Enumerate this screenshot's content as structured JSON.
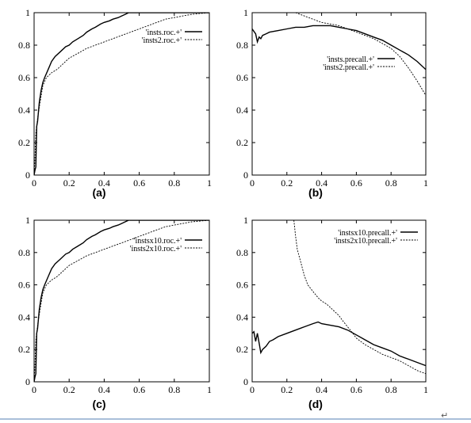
{
  "chart_data": [
    {
      "id": "a",
      "type": "line",
      "caption": "(a)",
      "xlim": [
        0,
        1
      ],
      "ylim": [
        0,
        1
      ],
      "xticks": [
        "0",
        "0.2",
        "0.4",
        "0.6",
        "0.8",
        "1"
      ],
      "yticks": [
        "0",
        "0.2",
        "0.4",
        "0.6",
        "0.8",
        "1"
      ],
      "legend": "top-right",
      "grid": false,
      "series": [
        {
          "name": "'insts.roc.+'",
          "style": "solid",
          "x": [
            0,
            0.005,
            0.01,
            0.015,
            0.02,
            0.03,
            0.04,
            0.05,
            0.06,
            0.08,
            0.1,
            0.12,
            0.15,
            0.18,
            0.2,
            0.22,
            0.25,
            0.28,
            0.3,
            0.33,
            0.35,
            0.38,
            0.4,
            0.43,
            0.45,
            0.48,
            0.5,
            0.52,
            0.54,
            0.56,
            0.6,
            0.7,
            0.8,
            0.9,
            1.0
          ],
          "y": [
            0,
            0.03,
            0.05,
            0.3,
            0.33,
            0.45,
            0.52,
            0.57,
            0.6,
            0.65,
            0.7,
            0.73,
            0.76,
            0.79,
            0.8,
            0.82,
            0.84,
            0.86,
            0.88,
            0.9,
            0.91,
            0.93,
            0.94,
            0.95,
            0.96,
            0.97,
            0.98,
            0.99,
            1.0,
            1.0,
            1.0,
            1.0,
            1.0,
            1.0,
            1.0
          ]
        },
        {
          "name": "'insts2.roc.+'",
          "style": "dashed",
          "x": [
            0,
            0.005,
            0.01,
            0.015,
            0.02,
            0.03,
            0.05,
            0.07,
            0.1,
            0.13,
            0.15,
            0.18,
            0.2,
            0.25,
            0.3,
            0.35,
            0.4,
            0.45,
            0.5,
            0.55,
            0.6,
            0.65,
            0.7,
            0.75,
            0.8,
            0.85,
            0.9,
            0.95,
            1.0
          ],
          "y": [
            0,
            0.1,
            0.26,
            0.3,
            0.35,
            0.42,
            0.55,
            0.6,
            0.63,
            0.65,
            0.67,
            0.7,
            0.72,
            0.75,
            0.78,
            0.8,
            0.82,
            0.84,
            0.86,
            0.88,
            0.9,
            0.92,
            0.94,
            0.96,
            0.97,
            0.98,
            0.99,
            0.995,
            1.0
          ]
        }
      ]
    },
    {
      "id": "b",
      "type": "line",
      "caption": "(b)",
      "xlim": [
        0,
        1
      ],
      "ylim": [
        0,
        1
      ],
      "xticks": [
        "0",
        "0.2",
        "0.4",
        "0.6",
        "0.8",
        "1"
      ],
      "yticks": [
        "0",
        "0.2",
        "0.4",
        "0.6",
        "0.8",
        "1"
      ],
      "legend": "center-right",
      "grid": false,
      "series": [
        {
          "name": "'insts.precall.+'",
          "style": "solid",
          "x": [
            0.0,
            0.02,
            0.03,
            0.04,
            0.05,
            0.06,
            0.08,
            0.1,
            0.15,
            0.2,
            0.25,
            0.3,
            0.35,
            0.4,
            0.45,
            0.5,
            0.55,
            0.6,
            0.65,
            0.7,
            0.75,
            0.8,
            0.85,
            0.9,
            0.95,
            1.0
          ],
          "y": [
            0.9,
            0.87,
            0.82,
            0.85,
            0.84,
            0.86,
            0.87,
            0.88,
            0.89,
            0.9,
            0.91,
            0.91,
            0.92,
            0.92,
            0.92,
            0.91,
            0.9,
            0.89,
            0.87,
            0.85,
            0.83,
            0.8,
            0.77,
            0.74,
            0.7,
            0.65
          ]
        },
        {
          "name": "'insts2.precall.+'",
          "style": "dashed",
          "x": [
            0.25,
            0.3,
            0.35,
            0.4,
            0.45,
            0.5,
            0.55,
            0.6,
            0.65,
            0.7,
            0.75,
            0.8,
            0.85,
            0.9,
            0.95,
            1.0
          ],
          "y": [
            1.0,
            0.98,
            0.96,
            0.94,
            0.93,
            0.92,
            0.9,
            0.88,
            0.86,
            0.84,
            0.81,
            0.78,
            0.73,
            0.66,
            0.58,
            0.49
          ]
        }
      ]
    },
    {
      "id": "c",
      "type": "line",
      "caption": "(c)",
      "xlim": [
        0,
        1
      ],
      "ylim": [
        0,
        1
      ],
      "xticks": [
        "0",
        "0.2",
        "0.4",
        "0.6",
        "0.8",
        "1"
      ],
      "yticks": [
        "0",
        "0.2",
        "0.4",
        "0.6",
        "0.8",
        "1"
      ],
      "legend": "top-right",
      "grid": false,
      "series": [
        {
          "name": "'instsx10.roc.+'",
          "style": "solid",
          "x": [
            0,
            0.005,
            0.01,
            0.015,
            0.02,
            0.03,
            0.04,
            0.05,
            0.06,
            0.08,
            0.1,
            0.12,
            0.15,
            0.18,
            0.2,
            0.22,
            0.25,
            0.28,
            0.3,
            0.33,
            0.35,
            0.38,
            0.4,
            0.43,
            0.45,
            0.48,
            0.5,
            0.52,
            0.54,
            0.56,
            0.6,
            0.7,
            0.8,
            0.9,
            1.0
          ],
          "y": [
            0,
            0.03,
            0.05,
            0.3,
            0.33,
            0.45,
            0.52,
            0.57,
            0.6,
            0.65,
            0.7,
            0.73,
            0.76,
            0.79,
            0.8,
            0.82,
            0.84,
            0.86,
            0.88,
            0.9,
            0.91,
            0.93,
            0.94,
            0.95,
            0.96,
            0.97,
            0.98,
            0.99,
            1.0,
            1.0,
            1.0,
            1.0,
            1.0,
            1.0,
            1.0
          ]
        },
        {
          "name": "'insts2x10.roc.+'",
          "style": "dashed",
          "x": [
            0,
            0.005,
            0.01,
            0.015,
            0.02,
            0.03,
            0.05,
            0.07,
            0.1,
            0.13,
            0.15,
            0.18,
            0.2,
            0.25,
            0.3,
            0.35,
            0.4,
            0.45,
            0.5,
            0.55,
            0.6,
            0.65,
            0.7,
            0.75,
            0.8,
            0.85,
            0.9,
            0.95,
            1.0
          ],
          "y": [
            0,
            0.1,
            0.26,
            0.3,
            0.35,
            0.42,
            0.55,
            0.6,
            0.63,
            0.65,
            0.67,
            0.7,
            0.72,
            0.75,
            0.78,
            0.8,
            0.82,
            0.84,
            0.86,
            0.88,
            0.9,
            0.92,
            0.94,
            0.96,
            0.97,
            0.98,
            0.99,
            0.995,
            1.0
          ]
        }
      ]
    },
    {
      "id": "d",
      "type": "line",
      "caption": "(d)",
      "xlim": [
        0,
        1
      ],
      "ylim": [
        0,
        1
      ],
      "xticks": [
        "0",
        "0.2",
        "0.4",
        "0.6",
        "0.8",
        "1"
      ],
      "yticks": [
        "0",
        "0.2",
        "0.4",
        "0.6",
        "0.8",
        "1"
      ],
      "legend": "top-right",
      "grid": false,
      "series": [
        {
          "name": "'instsx10.precall.+'",
          "style": "solid",
          "x": [
            0.0,
            0.01,
            0.02,
            0.03,
            0.04,
            0.05,
            0.06,
            0.08,
            0.1,
            0.12,
            0.15,
            0.2,
            0.25,
            0.3,
            0.35,
            0.38,
            0.4,
            0.45,
            0.5,
            0.55,
            0.6,
            0.65,
            0.7,
            0.75,
            0.8,
            0.85,
            0.9,
            0.95,
            1.0
          ],
          "y": [
            0.3,
            0.31,
            0.25,
            0.3,
            0.24,
            0.18,
            0.2,
            0.22,
            0.25,
            0.26,
            0.28,
            0.3,
            0.32,
            0.34,
            0.36,
            0.37,
            0.36,
            0.35,
            0.34,
            0.32,
            0.29,
            0.26,
            0.23,
            0.21,
            0.19,
            0.16,
            0.14,
            0.12,
            0.1
          ]
        },
        {
          "name": "'insts2x10.precall.+'",
          "style": "dashed",
          "x": [
            0.24,
            0.25,
            0.26,
            0.28,
            0.3,
            0.32,
            0.35,
            0.38,
            0.4,
            0.43,
            0.45,
            0.48,
            0.5,
            0.52,
            0.55,
            0.58,
            0.6,
            0.65,
            0.7,
            0.75,
            0.8,
            0.85,
            0.9,
            0.95,
            1.0
          ],
          "y": [
            1.0,
            0.9,
            0.82,
            0.74,
            0.66,
            0.6,
            0.56,
            0.52,
            0.5,
            0.48,
            0.46,
            0.43,
            0.41,
            0.38,
            0.34,
            0.3,
            0.27,
            0.23,
            0.2,
            0.17,
            0.15,
            0.13,
            0.1,
            0.07,
            0.05
          ]
        }
      ]
    }
  ]
}
